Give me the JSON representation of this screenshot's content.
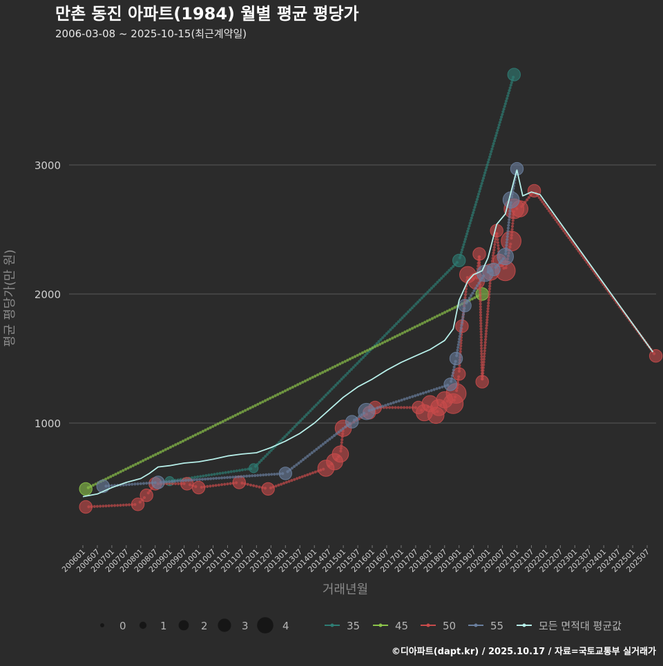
{
  "chart_data": {
    "type": "line",
    "title": "만촌 동진 아파트(1984) 월별 평균 평당가",
    "subtitle": "2006-03-08 ~ 2025-10-15(최근계약일)",
    "xlabel": "거래년월",
    "ylabel": "평균 평당가(만 원)",
    "ylim": [
      0,
      3850
    ],
    "yticks": [
      1000,
      2000,
      3000
    ],
    "xlim": [
      2006.0,
      2026.0
    ],
    "xticks": [
      "200601",
      "200607",
      "200701",
      "200707",
      "200801",
      "200807",
      "200901",
      "200907",
      "201001",
      "201007",
      "201101",
      "201107",
      "201201",
      "201207",
      "201301",
      "201307",
      "201401",
      "201407",
      "201501",
      "201507",
      "201601",
      "201607",
      "201701",
      "201707",
      "201801",
      "201807",
      "201901",
      "201907",
      "202001",
      "202007",
      "202101",
      "202107",
      "202201",
      "202207",
      "202301",
      "202307",
      "202401",
      "202407",
      "202501",
      "202507"
    ],
    "size_legend": {
      "values": [
        0,
        1,
        2,
        3,
        4
      ]
    },
    "series": [
      {
        "name": "35",
        "color": "#2e7d74",
        "points": [
          {
            "x": 2009.0,
            "y": 550,
            "size": 1
          },
          {
            "x": 2011.9,
            "y": 650,
            "size": 1
          },
          {
            "x": 2019.0,
            "y": 2260,
            "size": 2
          },
          {
            "x": 2020.9,
            "y": 3700,
            "size": 2
          }
        ]
      },
      {
        "name": "45",
        "color": "#8bc34a",
        "points": [
          {
            "x": 2006.1,
            "y": 490,
            "size": 2
          },
          {
            "x": 2019.8,
            "y": 2000,
            "size": 2
          }
        ]
      },
      {
        "name": "50",
        "color": "#c84b4b",
        "points": [
          {
            "x": 2006.1,
            "y": 350,
            "size": 2
          },
          {
            "x": 2007.9,
            "y": 370,
            "size": 2
          },
          {
            "x": 2008.2,
            "y": 440,
            "size": 2
          },
          {
            "x": 2008.5,
            "y": 530,
            "size": 2
          },
          {
            "x": 2009.6,
            "y": 530,
            "size": 2
          },
          {
            "x": 2010.0,
            "y": 500,
            "size": 2
          },
          {
            "x": 2011.4,
            "y": 540,
            "size": 2
          },
          {
            "x": 2012.4,
            "y": 490,
            "size": 2
          },
          {
            "x": 2014.4,
            "y": 650,
            "size": 3
          },
          {
            "x": 2014.7,
            "y": 700,
            "size": 3
          },
          {
            "x": 2014.9,
            "y": 760,
            "size": 3
          },
          {
            "x": 2015.0,
            "y": 960,
            "size": 3
          },
          {
            "x": 2015.9,
            "y": 1080,
            "size": 2
          },
          {
            "x": 2016.1,
            "y": 1120,
            "size": 2
          },
          {
            "x": 2017.6,
            "y": 1120,
            "size": 2
          },
          {
            "x": 2017.8,
            "y": 1080,
            "size": 3
          },
          {
            "x": 2018.0,
            "y": 1150,
            "size": 3
          },
          {
            "x": 2018.2,
            "y": 1060,
            "size": 3
          },
          {
            "x": 2018.3,
            "y": 1120,
            "size": 3
          },
          {
            "x": 2018.5,
            "y": 1180,
            "size": 3
          },
          {
            "x": 2018.8,
            "y": 1150,
            "size": 4
          },
          {
            "x": 2018.9,
            "y": 1230,
            "size": 4
          },
          {
            "x": 2019.0,
            "y": 1380,
            "size": 2
          },
          {
            "x": 2019.1,
            "y": 1750,
            "size": 2
          },
          {
            "x": 2019.3,
            "y": 2150,
            "size": 3
          },
          {
            "x": 2019.6,
            "y": 2100,
            "size": 3
          },
          {
            "x": 2019.7,
            "y": 2310,
            "size": 2
          },
          {
            "x": 2019.8,
            "y": 1320,
            "size": 2
          },
          {
            "x": 2020.1,
            "y": 2170,
            "size": 3
          },
          {
            "x": 2020.3,
            "y": 2490,
            "size": 2
          },
          {
            "x": 2020.4,
            "y": 2260,
            "size": 2
          },
          {
            "x": 2020.6,
            "y": 2180,
            "size": 4
          },
          {
            "x": 2020.8,
            "y": 2410,
            "size": 4
          },
          {
            "x": 2020.9,
            "y": 2660,
            "size": 4
          },
          {
            "x": 2021.1,
            "y": 2660,
            "size": 3
          },
          {
            "x": 2021.6,
            "y": 2800,
            "size": 2
          },
          {
            "x": 2025.8,
            "y": 1520,
            "size": 2
          }
        ]
      },
      {
        "name": "55",
        "color": "#6a7f9e",
        "points": [
          {
            "x": 2006.7,
            "y": 510,
            "size": 2
          },
          {
            "x": 2008.6,
            "y": 540,
            "size": 2
          },
          {
            "x": 2013.0,
            "y": 610,
            "size": 2
          },
          {
            "x": 2015.3,
            "y": 1010,
            "size": 2
          },
          {
            "x": 2015.8,
            "y": 1090,
            "size": 3
          },
          {
            "x": 2018.7,
            "y": 1300,
            "size": 2
          },
          {
            "x": 2018.9,
            "y": 1500,
            "size": 2
          },
          {
            "x": 2019.2,
            "y": 1910,
            "size": 2
          },
          {
            "x": 2019.9,
            "y": 2160,
            "size": 3
          },
          {
            "x": 2020.2,
            "y": 2190,
            "size": 2
          },
          {
            "x": 2020.6,
            "y": 2290,
            "size": 3
          },
          {
            "x": 2020.8,
            "y": 2730,
            "size": 3
          },
          {
            "x": 2021.0,
            "y": 2970,
            "size": 2
          }
        ]
      },
      {
        "name": "모든 면적대 평균값",
        "color": "#b7efe9",
        "points": [
          {
            "x": 2006.0,
            "y": 430
          },
          {
            "x": 2006.5,
            "y": 450
          },
          {
            "x": 2007.0,
            "y": 500
          },
          {
            "x": 2007.5,
            "y": 540
          },
          {
            "x": 2008.0,
            "y": 570
          },
          {
            "x": 2008.3,
            "y": 610
          },
          {
            "x": 2008.6,
            "y": 660
          },
          {
            "x": 2009.0,
            "y": 670
          },
          {
            "x": 2009.5,
            "y": 690
          },
          {
            "x": 2010.0,
            "y": 700
          },
          {
            "x": 2010.5,
            "y": 720
          },
          {
            "x": 2011.0,
            "y": 745
          },
          {
            "x": 2011.5,
            "y": 760
          },
          {
            "x": 2012.0,
            "y": 770
          },
          {
            "x": 2012.5,
            "y": 810
          },
          {
            "x": 2013.0,
            "y": 860
          },
          {
            "x": 2013.5,
            "y": 920
          },
          {
            "x": 2014.0,
            "y": 1000
          },
          {
            "x": 2014.5,
            "y": 1100
          },
          {
            "x": 2015.0,
            "y": 1200
          },
          {
            "x": 2015.5,
            "y": 1280
          },
          {
            "x": 2016.0,
            "y": 1340
          },
          {
            "x": 2016.5,
            "y": 1410
          },
          {
            "x": 2017.0,
            "y": 1470
          },
          {
            "x": 2017.5,
            "y": 1520
          },
          {
            "x": 2018.0,
            "y": 1570
          },
          {
            "x": 2018.5,
            "y": 1640
          },
          {
            "x": 2018.8,
            "y": 1730
          },
          {
            "x": 2019.0,
            "y": 1950
          },
          {
            "x": 2019.3,
            "y": 2100
          },
          {
            "x": 2019.5,
            "y": 2150
          },
          {
            "x": 2019.8,
            "y": 2180
          },
          {
            "x": 2020.0,
            "y": 2280
          },
          {
            "x": 2020.3,
            "y": 2540
          },
          {
            "x": 2020.6,
            "y": 2620
          },
          {
            "x": 2020.9,
            "y": 2880
          },
          {
            "x": 2021.0,
            "y": 2960
          },
          {
            "x": 2021.2,
            "y": 2760
          },
          {
            "x": 2021.5,
            "y": 2790
          },
          {
            "x": 2021.8,
            "y": 2770
          },
          {
            "x": 2025.7,
            "y": 1550
          }
        ]
      }
    ]
  },
  "footer": "©디아파트(dapt.kr) / 2025.10.17 / 자료=국토교통부 실거래가"
}
